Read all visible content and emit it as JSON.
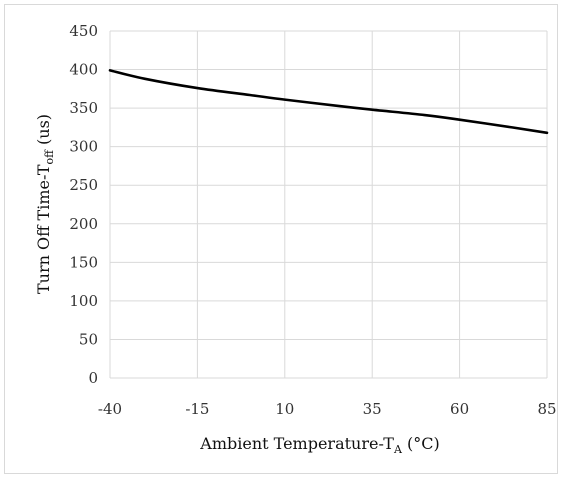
{
  "chart_data": {
    "type": "line",
    "xlabel": {
      "text": "Ambient Temperature-T",
      "subscript": "A",
      "suffix": " (°C)"
    },
    "ylabel": {
      "text": "Turn Off  Time-T",
      "subscript": "off",
      "suffix": " (us)"
    },
    "x_ticks": [
      -40,
      -15,
      10,
      35,
      60,
      85
    ],
    "y_ticks": [
      0,
      50,
      100,
      150,
      200,
      250,
      300,
      350,
      400,
      450
    ],
    "xlim": [
      -40,
      85
    ],
    "ylim": [
      0,
      450
    ],
    "grid": true,
    "series": [
      {
        "color": "#000000",
        "x": [
          -40,
          -30,
          -15,
          0,
          10,
          25,
          35,
          50,
          60,
          75,
          85
        ],
        "y": [
          399,
          388,
          376,
          367,
          361,
          353,
          348,
          341,
          335,
          325,
          318
        ]
      }
    ]
  }
}
